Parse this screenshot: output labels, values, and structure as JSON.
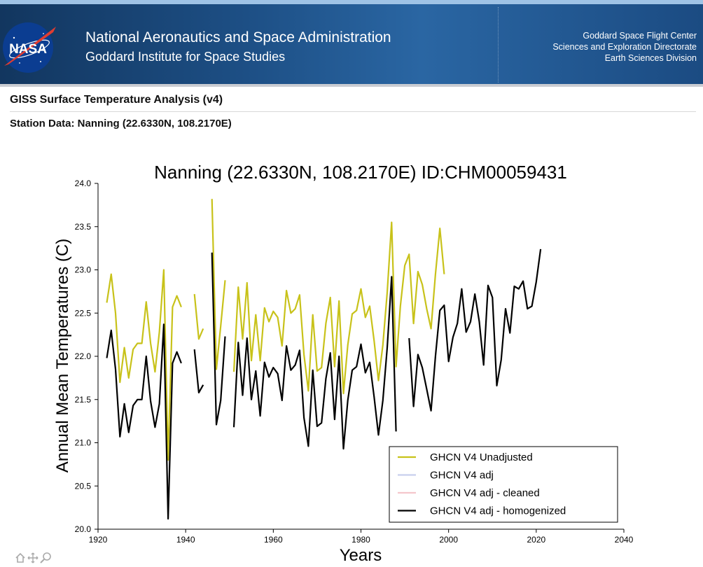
{
  "header": {
    "org_line1": "National Aeronautics and Space Administration",
    "org_line2": "Goddard Institute for Space Studies",
    "right_line1": "Goddard Space Flight Center",
    "right_line2": "Sciences and Exploration Directorate",
    "right_line3": "Earth Sciences Division",
    "logo_text": "NASA"
  },
  "page": {
    "title": "GISS Surface Temperature Analysis (v4)",
    "station_label": "Station Data: Nanning (22.6330N, 108.2170E)"
  },
  "chart_data": {
    "type": "line",
    "title": "Nanning (22.6330N, 108.2170E) ID:CHM00059431",
    "xlabel": "Years",
    "ylabel": "Annual Mean Temperatures (C)",
    "xlim": [
      1920,
      2040
    ],
    "ylim": [
      20.0,
      24.0
    ],
    "xticks": [
      "1920",
      "1940",
      "1960",
      "1980",
      "2000",
      "2020",
      "2040"
    ],
    "yticks": [
      "20.0",
      "20.5",
      "21.0",
      "21.5",
      "22.0",
      "22.5",
      "23.0",
      "23.5",
      "24.0"
    ],
    "legend_position": "bottom-right",
    "series": [
      {
        "name": "GHCN V4 Unadjusted",
        "color": "#c8c21a",
        "x": [
          1922,
          1923,
          1924,
          1925,
          1926,
          1927,
          1928,
          1929,
          1930,
          1931,
          1932,
          1933,
          1934,
          1935,
          1936,
          1937,
          1938,
          1939,
          null,
          1942,
          1943,
          1944,
          null,
          1946,
          1947,
          1948,
          1949,
          null,
          1951,
          1952,
          1953,
          1954,
          1955,
          1956,
          1957,
          1958,
          1959,
          1960,
          1961,
          1962,
          1963,
          1964,
          1965,
          1966,
          1967,
          1968,
          1969,
          1970,
          1971,
          1972,
          1973,
          1974,
          1975,
          1976,
          1977,
          1978,
          1979,
          1980,
          1981,
          1982,
          1983,
          1984,
          1985,
          1986,
          1987,
          1988,
          1989,
          1990,
          1991,
          1992,
          1993,
          1994,
          1995,
          1996,
          1997,
          1998,
          1999
        ],
        "y": [
          22.62,
          22.95,
          22.5,
          21.7,
          22.1,
          21.75,
          22.08,
          22.15,
          22.15,
          22.63,
          22.15,
          21.82,
          22.28,
          23.0,
          20.8,
          22.57,
          22.7,
          22.57,
          null,
          22.72,
          22.2,
          22.32,
          null,
          23.82,
          21.85,
          22.35,
          22.88,
          null,
          21.82,
          22.8,
          22.2,
          22.85,
          21.95,
          22.48,
          21.95,
          22.56,
          22.4,
          22.52,
          22.45,
          22.12,
          22.76,
          22.5,
          22.55,
          22.71,
          22.02,
          21.6,
          22.48,
          21.83,
          21.87,
          22.38,
          22.68,
          21.88,
          22.64,
          21.57,
          22.13,
          22.49,
          22.53,
          22.78,
          22.45,
          22.58,
          22.18,
          21.72,
          22.13,
          22.74,
          23.55,
          21.88,
          22.58,
          23.05,
          23.18,
          22.38,
          22.98,
          22.83,
          22.55,
          22.32,
          22.95,
          23.48,
          22.95
        ]
      },
      {
        "name": "GHCN V4 adj",
        "color": "#c8cfee",
        "x": [],
        "y": []
      },
      {
        "name": "GHCN V4 adj - cleaned",
        "color": "#f4c6cc",
        "x": [],
        "y": []
      },
      {
        "name": "GHCN V4 adj - homogenized",
        "color": "#000000",
        "x": [
          1922,
          1923,
          1924,
          1925,
          1926,
          1927,
          1928,
          1929,
          1930,
          1931,
          1932,
          1933,
          1934,
          1935,
          1936,
          1937,
          1938,
          1939,
          null,
          1942,
          1943,
          1944,
          null,
          1946,
          1947,
          1948,
          1949,
          null,
          1951,
          1952,
          1953,
          1954,
          1955,
          1956,
          1957,
          1958,
          1959,
          1960,
          1961,
          1962,
          1963,
          1964,
          1965,
          1966,
          1967,
          1968,
          1969,
          1970,
          1971,
          1972,
          1973,
          1974,
          1975,
          1976,
          1977,
          1978,
          1979,
          1980,
          1981,
          1982,
          1983,
          1984,
          1985,
          1986,
          1987,
          1988,
          null,
          1991,
          1992,
          1993,
          1994,
          1995,
          1996,
          1997,
          1998,
          1999,
          2000,
          2001,
          2002,
          2003,
          2004,
          2005,
          2006,
          2007,
          2008,
          2009,
          2010,
          2011,
          2012,
          2013,
          2014,
          2015,
          2016,
          2017,
          2018,
          2019,
          2020,
          2021
        ],
        "y": [
          21.98,
          22.3,
          21.85,
          21.07,
          21.45,
          21.12,
          21.43,
          21.5,
          21.5,
          22.0,
          21.48,
          21.18,
          21.45,
          22.37,
          20.12,
          21.92,
          22.05,
          21.92,
          null,
          22.08,
          21.58,
          21.67,
          null,
          23.2,
          21.21,
          21.49,
          22.23,
          null,
          21.18,
          22.16,
          21.55,
          22.21,
          21.5,
          21.83,
          21.31,
          21.93,
          21.76,
          21.87,
          21.8,
          21.49,
          22.12,
          21.84,
          21.9,
          22.07,
          21.29,
          20.96,
          21.84,
          21.19,
          21.23,
          21.74,
          22.04,
          21.27,
          22.0,
          20.93,
          21.49,
          21.84,
          21.88,
          22.14,
          21.81,
          21.93,
          21.53,
          21.09,
          21.49,
          22.1,
          22.92,
          21.13,
          null,
          22.21,
          21.42,
          22.02,
          21.87,
          21.62,
          21.37,
          22.0,
          22.53,
          22.59,
          21.94,
          22.22,
          22.38,
          22.78,
          22.28,
          22.4,
          22.72,
          22.4,
          21.9,
          22.82,
          22.68,
          21.66,
          21.96,
          22.55,
          22.27,
          22.81,
          22.78,
          22.87,
          22.55,
          22.58,
          22.86,
          23.24
        ]
      }
    ]
  }
}
